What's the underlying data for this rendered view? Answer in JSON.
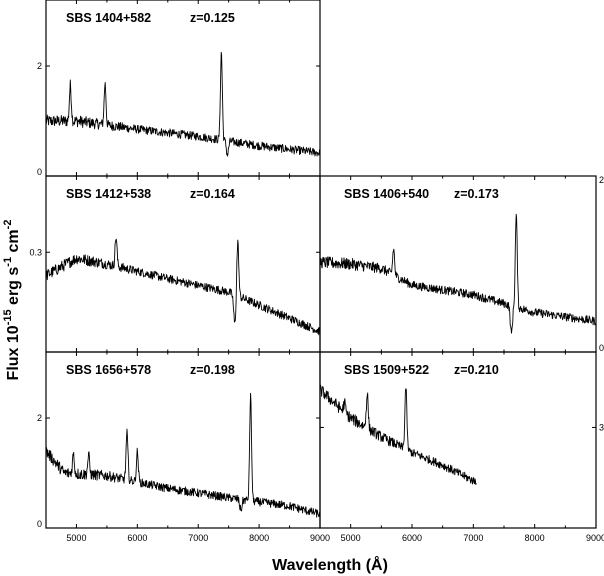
{
  "chart_data": {
    "type": "line",
    "xlabel": "Wavelength  (Å)",
    "ylabel": {
      "parts": [
        "Flux  10",
        "-15",
        " erg  s",
        "-1",
        "  cm",
        "-2"
      ]
    },
    "x_ticks": [
      5000,
      6000,
      7000,
      8000,
      9000
    ],
    "xlim": [
      4500,
      9000
    ],
    "panels": [
      {
        "name": "SBS 1404+582",
        "z_label": "z=0.125",
        "ylim": [
          0,
          3.2
        ],
        "y_ticks": [
          0,
          2
        ],
        "y_tick_side": "left",
        "lines": [
          {
            "wavelength": 4900,
            "height": 0.65
          },
          {
            "wavelength": 5470,
            "height": 0.75
          },
          {
            "wavelength": 7380,
            "height": 1.6
          }
        ],
        "continuum": [
          [
            4500,
            1.0
          ],
          [
            5000,
            1.0
          ],
          [
            6000,
            0.85
          ],
          [
            7000,
            0.72
          ],
          [
            8000,
            0.55
          ],
          [
            9000,
            0.42
          ]
        ],
        "absorption": [
          {
            "wavelength": 7480,
            "depth": 0.25
          }
        ],
        "xrange": [
          4500,
          9000
        ]
      },
      {
        "name": "SBS 1412+538",
        "z_label": "z=0.164",
        "ylim": [
          0.13,
          0.43
        ],
        "y_ticks": [
          0.3
        ],
        "y_tick_side": "left",
        "lines": [
          {
            "wavelength": 5650,
            "height": 0.05
          },
          {
            "wavelength": 7650,
            "height": 0.093
          }
        ],
        "continuum": [
          [
            4500,
            0.26
          ],
          [
            5000,
            0.29
          ],
          [
            5500,
            0.28
          ],
          [
            6500,
            0.255
          ],
          [
            7500,
            0.232
          ],
          [
            8000,
            0.21
          ],
          [
            9000,
            0.165
          ]
        ],
        "absorption": [
          {
            "wavelength": 7600,
            "depth": 0.05
          }
        ],
        "xrange": [
          4500,
          9000
        ]
      },
      {
        "name": "SBS 1406+540",
        "z_label": "z=0.173",
        "ylim": [
          0,
          2
        ],
        "y_ticks": [
          0,
          2
        ],
        "y_tick_side": "right",
        "lines": [
          {
            "wavelength": 5700,
            "height": 0.3
          },
          {
            "wavelength": 7700,
            "height": 1.05
          }
        ],
        "continuum": [
          [
            4500,
            1.02
          ],
          [
            5000,
            1.0
          ],
          [
            5500,
            0.95
          ],
          [
            6000,
            0.76
          ],
          [
            7000,
            0.65
          ],
          [
            8000,
            0.45
          ],
          [
            9000,
            0.35
          ]
        ],
        "absorption": [
          {
            "wavelength": 7620,
            "depth": 0.32
          }
        ],
        "xrange": [
          4500,
          9000
        ]
      },
      {
        "name": "SBS 1656+578",
        "z_label": "z=0.198",
        "ylim": [
          0,
          3.2
        ],
        "y_ticks": [
          0,
          2
        ],
        "y_tick_side": "left",
        "lines": [
          {
            "wavelength": 4950,
            "height": 0.35
          },
          {
            "wavelength": 5200,
            "height": 0.35
          },
          {
            "wavelength": 5830,
            "height": 0.85
          },
          {
            "wavelength": 6000,
            "height": 0.55
          },
          {
            "wavelength": 7860,
            "height": 1.9
          }
        ],
        "continuum": [
          [
            4500,
            1.4
          ],
          [
            4800,
            1.0
          ],
          [
            5500,
            0.95
          ],
          [
            6500,
            0.72
          ],
          [
            7500,
            0.55
          ],
          [
            8500,
            0.4
          ],
          [
            9000,
            0.25
          ]
        ],
        "absorption": [
          {
            "wavelength": 7700,
            "depth": 0.2
          }
        ],
        "xrange": [
          4500,
          9000
        ]
      },
      {
        "name": "SBS 1509+522",
        "z_label": "z=0.210",
        "ylim": [
          1.4,
          4.2
        ],
        "y_ticks": [
          3
        ],
        "y_tick_side": "right",
        "lines": [
          {
            "wavelength": 4900,
            "height": 0.15
          },
          {
            "wavelength": 5270,
            "height": 0.55
          },
          {
            "wavelength": 5900,
            "height": 1.0
          }
        ],
        "continuum": [
          [
            4500,
            3.6
          ],
          [
            5000,
            3.15
          ],
          [
            5500,
            2.85
          ],
          [
            6000,
            2.6
          ],
          [
            6500,
            2.4
          ],
          [
            7000,
            2.15
          ]
        ],
        "absorption": [],
        "xrange": [
          4500,
          7050
        ]
      }
    ]
  }
}
